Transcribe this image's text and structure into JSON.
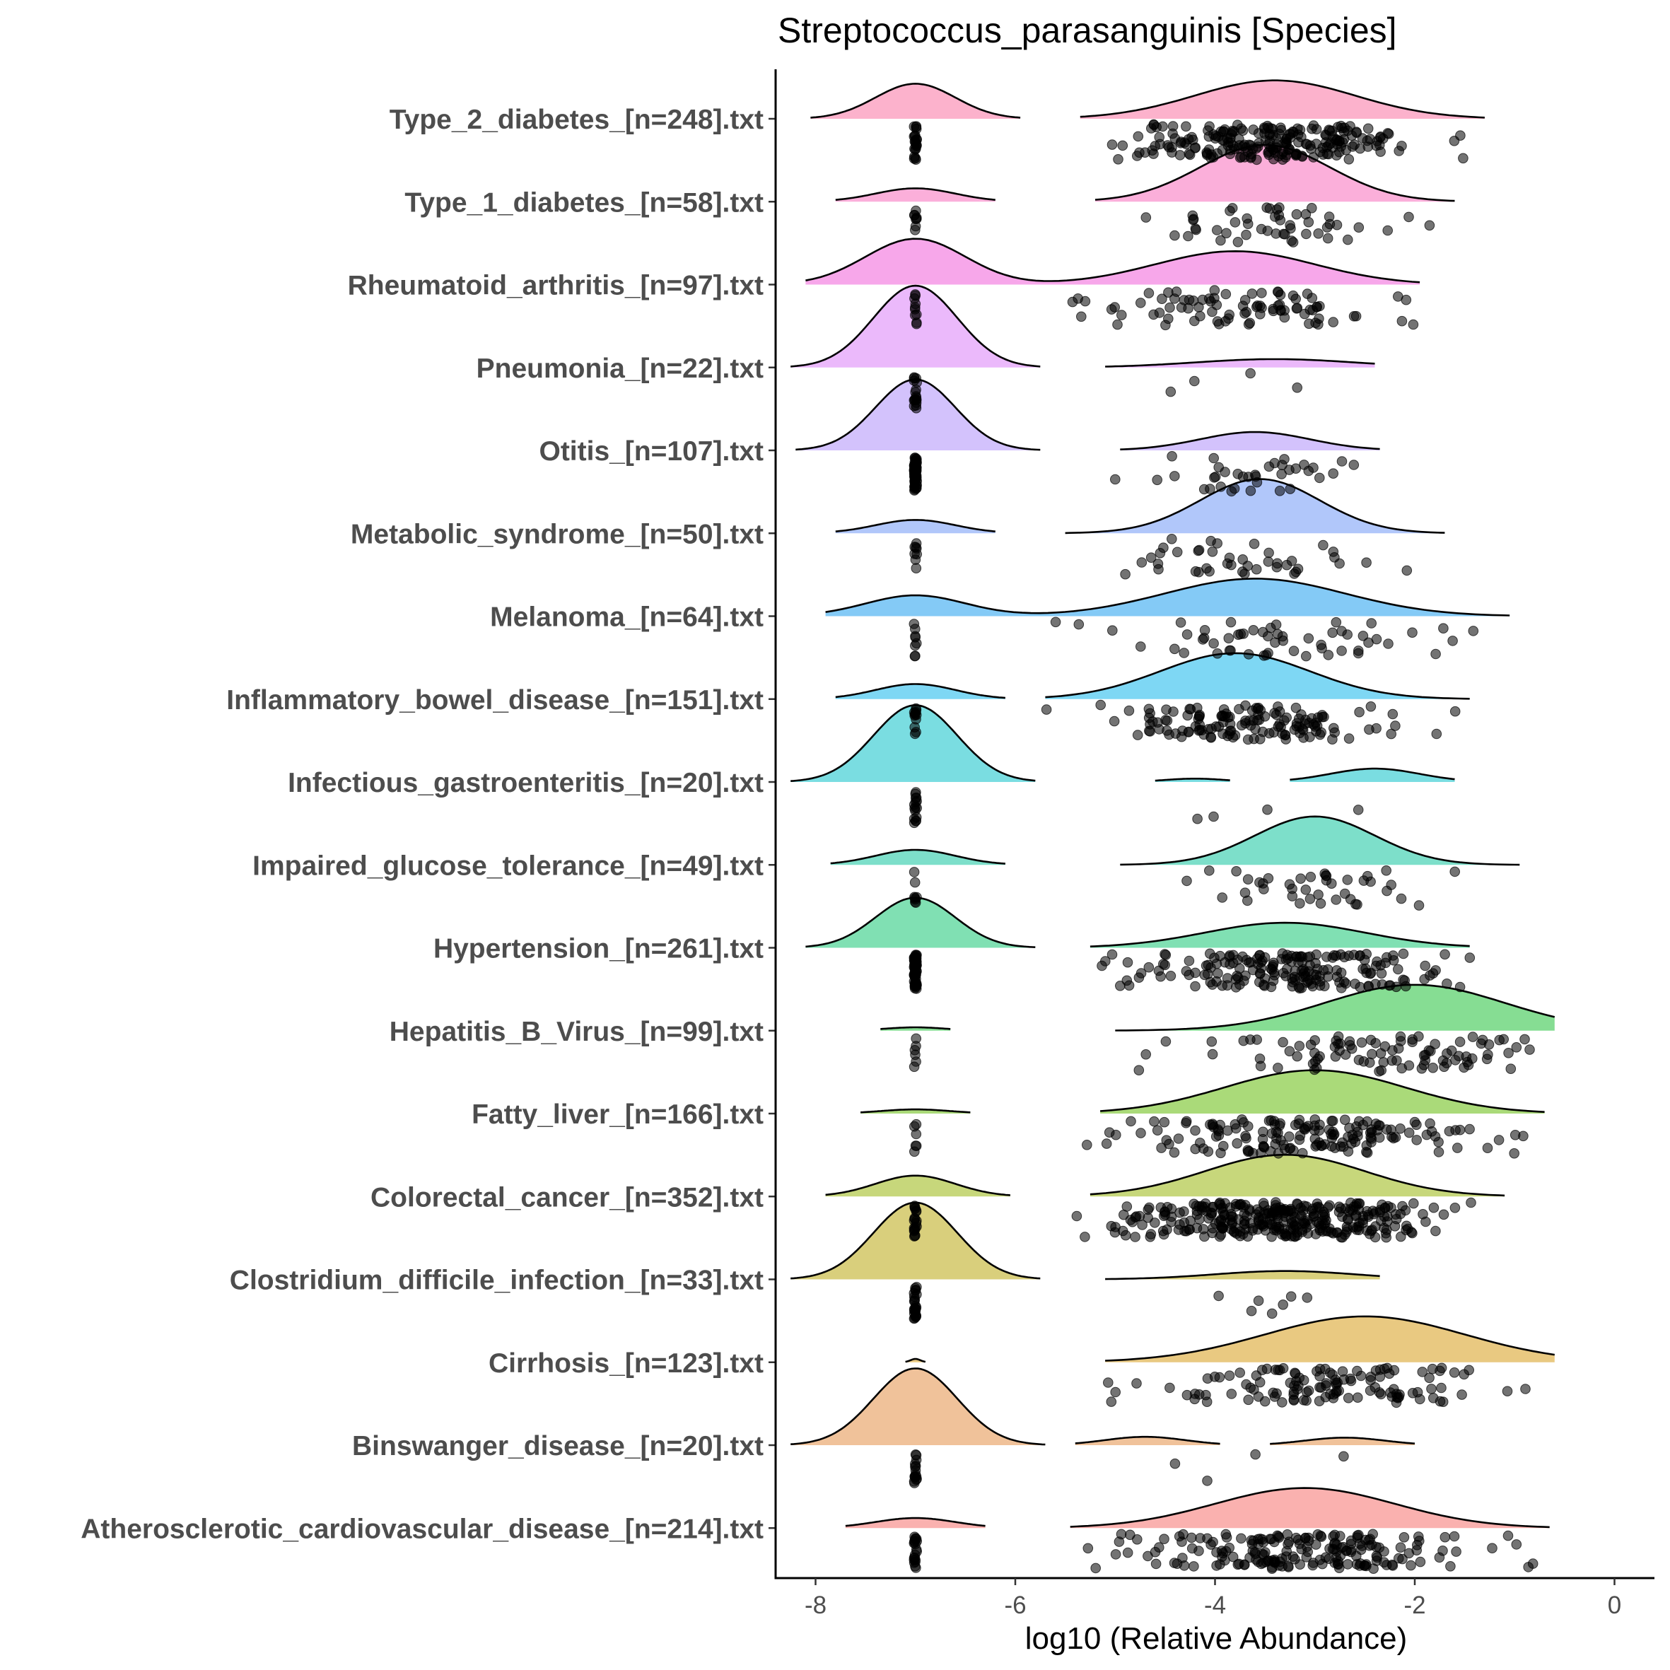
{
  "chart_data": {
    "type": "raincloud",
    "title": "Streptococcus_parasanguinis [Species]",
    "xlabel": "log10 (Relative Abundance)",
    "ylabel": "",
    "xlim": [
      -8.4,
      0.4
    ],
    "xticks": [
      -8,
      -6,
      -4,
      -2,
      0
    ],
    "xtick_labels": [
      "-8",
      "-6",
      "-4",
      "-2",
      "0"
    ],
    "zero_value": -7,
    "series": [
      {
        "name": "Type_2_diabetes_[n=248].txt",
        "color": "#FCB2CC",
        "clouds": [
          {
            "range": [
              -8.05,
              -5.95
            ],
            "mode": -7.0,
            "sd": 0.4,
            "height": 0.42
          },
          {
            "range": [
              -5.35,
              -1.3
            ],
            "mode": -3.4,
            "sd": 0.8,
            "height": 0.46
          }
        ],
        "zero_points": 22,
        "nonzero_range": [
          -5.4,
          -1.5
        ],
        "nonzero_center": -3.4,
        "nonzero_sd": 0.75,
        "nonzero_points": 226
      },
      {
        "name": "Type_1_diabetes_[n=58].txt",
        "color": "#FBAFDA",
        "clouds": [
          {
            "range": [
              -7.8,
              -6.2
            ],
            "mode": -7.0,
            "sd": 0.4,
            "height": 0.16
          },
          {
            "range": [
              -5.2,
              -1.6
            ],
            "mode": -3.5,
            "sd": 0.65,
            "height": 0.68
          }
        ],
        "zero_points": 8,
        "nonzero_range": [
          -5.0,
          -1.8
        ],
        "nonzero_center": -3.3,
        "nonzero_sd": 0.6,
        "nonzero_points": 50
      },
      {
        "name": "Rheumatoid_arthritis_[n=97].txt",
        "color": "#F7A7EA",
        "clouds": [
          {
            "range": [
              -8.1,
              -1.95
            ],
            "mode": -7.0,
            "sd": 0.5,
            "height": 0.55,
            "second": {
              "mode": -3.8,
              "sd": 0.8,
              "height": 0.4
            }
          }
        ],
        "zero_points": 10,
        "nonzero_range": [
          -5.5,
          -2.0
        ],
        "nonzero_center": -3.8,
        "nonzero_sd": 0.7,
        "nonzero_points": 87
      },
      {
        "name": "Pneumonia_[n=22].txt",
        "color": "#EBB9FB",
        "clouds": [
          {
            "range": [
              -8.25,
              -5.75
            ],
            "mode": -7.0,
            "sd": 0.42,
            "height": 0.98
          },
          {
            "range": [
              -5.1,
              -2.4
            ],
            "mode": -3.4,
            "sd": 0.8,
            "height": 0.1
          }
        ],
        "zero_points": 18,
        "nonzero_range": [
          -4.8,
          -2.9
        ],
        "nonzero_center": -3.6,
        "nonzero_sd": 0.6,
        "nonzero_points": 4
      },
      {
        "name": "Otitis_[n=107].txt",
        "color": "#D3C2FC",
        "clouds": [
          {
            "range": [
              -8.2,
              -5.75
            ],
            "mode": -7.0,
            "sd": 0.4,
            "height": 0.85
          },
          {
            "range": [
              -4.95,
              -2.35
            ],
            "mode": -3.6,
            "sd": 0.55,
            "height": 0.22
          }
        ],
        "zero_points": 70,
        "nonzero_range": [
          -5.2,
          -2.6
        ],
        "nonzero_center": -3.6,
        "nonzero_sd": 0.45,
        "nonzero_points": 37
      },
      {
        "name": "Metabolic_syndrome_[n=50].txt",
        "color": "#B1C7FA",
        "clouds": [
          {
            "range": [
              -7.8,
              -6.2
            ],
            "mode": -7.0,
            "sd": 0.4,
            "height": 0.16
          },
          {
            "range": [
              -5.5,
              -1.7
            ],
            "mode": -3.55,
            "sd": 0.6,
            "height": 0.65
          }
        ],
        "zero_points": 8,
        "nonzero_range": [
          -5.0,
          -2.0
        ],
        "nonzero_center": -3.6,
        "nonzero_sd": 0.6,
        "nonzero_points": 42
      },
      {
        "name": "Melanoma_[n=64].txt",
        "color": "#84CAF6",
        "clouds": [
          {
            "range": [
              -7.9,
              -1.05
            ],
            "mode": -7.0,
            "sd": 0.5,
            "height": 0.25,
            "second": {
              "mode": -3.6,
              "sd": 0.9,
              "height": 0.45
            }
          }
        ],
        "zero_points": 8,
        "nonzero_range": [
          -5.8,
          -1.4
        ],
        "nonzero_center": -3.5,
        "nonzero_sd": 0.9,
        "nonzero_points": 56
      },
      {
        "name": "Inflammatory_bowel_disease_[n=151].txt",
        "color": "#7ED7F4",
        "clouds": [
          {
            "range": [
              -7.8,
              -6.1
            ],
            "mode": -7.0,
            "sd": 0.4,
            "height": 0.18
          },
          {
            "range": [
              -5.7,
              -1.45
            ],
            "mode": -3.8,
            "sd": 0.75,
            "height": 0.55
          }
        ],
        "zero_points": 12,
        "nonzero_range": [
          -5.8,
          -1.5
        ],
        "nonzero_center": -3.7,
        "nonzero_sd": 0.7,
        "nonzero_points": 139
      },
      {
        "name": "Infectious_gastroenteritis_[n=20].txt",
        "color": "#7ADDE1",
        "clouds": [
          {
            "range": [
              -8.25,
              -5.8
            ],
            "mode": -7.0,
            "sd": 0.42,
            "height": 0.92
          },
          {
            "range": [
              -4.6,
              -3.85
            ],
            "mode": -4.2,
            "sd": 0.3,
            "height": 0.04
          },
          {
            "range": [
              -3.25,
              -1.6
            ],
            "mode": -2.4,
            "sd": 0.45,
            "height": 0.16
          }
        ],
        "zero_points": 16,
        "nonzero_range": [
          -4.3,
          -2.3
        ],
        "nonzero_center": -3.0,
        "nonzero_sd": 0.8,
        "nonzero_points": 4
      },
      {
        "name": "Impaired_glucose_tolerance_[n=49].txt",
        "color": "#7DDFCA",
        "clouds": [
          {
            "range": [
              -7.85,
              -6.1
            ],
            "mode": -7.0,
            "sd": 0.4,
            "height": 0.18
          },
          {
            "range": [
              -4.95,
              -0.95
            ],
            "mode": -3.0,
            "sd": 0.6,
            "height": 0.58
          }
        ],
        "zero_points": 8,
        "nonzero_range": [
          -5.3,
          -1.0
        ],
        "nonzero_center": -3.0,
        "nonzero_sd": 0.7,
        "nonzero_points": 41
      },
      {
        "name": "Hypertension_[n=261].txt",
        "color": "#80E0B3",
        "clouds": [
          {
            "range": [
              -8.1,
              -5.8
            ],
            "mode": -7.0,
            "sd": 0.4,
            "height": 0.6
          },
          {
            "range": [
              -5.25,
              -1.45
            ],
            "mode": -3.3,
            "sd": 0.8,
            "height": 0.3
          }
        ],
        "zero_points": 70,
        "nonzero_range": [
          -5.3,
          -1.3
        ],
        "nonzero_center": -3.3,
        "nonzero_sd": 0.75,
        "nonzero_points": 191
      },
      {
        "name": "Hepatitis_B_Virus_[n=99].txt",
        "color": "#86DD93",
        "clouds": [
          {
            "range": [
              -7.35,
              -6.65
            ],
            "mode": -7.0,
            "sd": 0.3,
            "height": 0.04
          },
          {
            "range": [
              -5.0,
              -0.6
            ],
            "mode": -2.0,
            "sd": 0.9,
            "height": 0.55
          }
        ],
        "zero_points": 6,
        "nonzero_range": [
          -4.9,
          -0.8
        ],
        "nonzero_center": -2.4,
        "nonzero_sd": 0.9,
        "nonzero_points": 93
      },
      {
        "name": "Fatty_liver_[n=166].txt",
        "color": "#AADA79",
        "clouds": [
          {
            "range": [
              -7.55,
              -6.45
            ],
            "mode": -7.0,
            "sd": 0.35,
            "height": 0.05
          },
          {
            "range": [
              -5.15,
              -0.7
            ],
            "mode": -3.0,
            "sd": 0.9,
            "height": 0.52
          }
        ],
        "zero_points": 6,
        "nonzero_range": [
          -5.3,
          -0.9
        ],
        "nonzero_center": -3.0,
        "nonzero_sd": 0.9,
        "nonzero_points": 160
      },
      {
        "name": "Colorectal_cancer_[n=352].txt",
        "color": "#C7D77B",
        "clouds": [
          {
            "range": [
              -7.9,
              -6.05
            ],
            "mode": -7.0,
            "sd": 0.4,
            "height": 0.25
          },
          {
            "range": [
              -5.25,
              -1.1
            ],
            "mode": -3.3,
            "sd": 0.8,
            "height": 0.5
          }
        ],
        "zero_points": 20,
        "nonzero_range": [
          -5.7,
          -1.0
        ],
        "nonzero_center": -3.3,
        "nonzero_sd": 0.75,
        "nonzero_points": 332
      },
      {
        "name": "Clostridium_difficile_infection_[n=33].txt",
        "color": "#D9CF7C",
        "clouds": [
          {
            "range": [
              -8.25,
              -5.75
            ],
            "mode": -7.0,
            "sd": 0.42,
            "height": 0.92
          },
          {
            "range": [
              -5.1,
              -2.35
            ],
            "mode": -3.3,
            "sd": 0.7,
            "height": 0.1
          }
        ],
        "zero_points": 26,
        "nonzero_range": [
          -4.8,
          -2.9
        ],
        "nonzero_center": -3.5,
        "nonzero_sd": 0.6,
        "nonzero_points": 7
      },
      {
        "name": "Cirrhosis_[n=123].txt",
        "color": "#E9C981",
        "clouds": [
          {
            "range": [
              -7.1,
              -6.9
            ],
            "mode": -7.0,
            "sd": 0.05,
            "height": 0.04
          },
          {
            "range": [
              -5.1,
              -0.6
            ],
            "mode": -2.5,
            "sd": 1.0,
            "height": 0.55
          }
        ],
        "zero_points": 0,
        "nonzero_range": [
          -5.2,
          -0.8
        ],
        "nonzero_center": -2.8,
        "nonzero_sd": 0.9,
        "nonzero_points": 123
      },
      {
        "name": "Binswanger_disease_[n=20].txt",
        "color": "#F0C29A",
        "clouds": [
          {
            "range": [
              -8.25,
              -5.7
            ],
            "mode": -7.0,
            "sd": 0.42,
            "height": 0.92
          },
          {
            "range": [
              -5.4,
              -3.95
            ],
            "mode": -4.7,
            "sd": 0.4,
            "height": 0.1
          },
          {
            "range": [
              -3.45,
              -2.0
            ],
            "mode": -2.7,
            "sd": 0.4,
            "height": 0.09
          }
        ],
        "zero_points": 16,
        "nonzero_range": [
          -4.8,
          -2.7
        ],
        "nonzero_center": -3.6,
        "nonzero_sd": 1.0,
        "nonzero_points": 4
      },
      {
        "name": "Atherosclerotic_cardiovascular_disease_[n=214].txt",
        "color": "#FAB1AF",
        "clouds": [
          {
            "range": [
              -7.7,
              -6.3
            ],
            "mode": -7.0,
            "sd": 0.4,
            "height": 0.12
          },
          {
            "range": [
              -5.45,
              -0.65
            ],
            "mode": -3.1,
            "sd": 0.9,
            "height": 0.48
          }
        ],
        "zero_points": 20,
        "nonzero_range": [
          -5.3,
          -0.7
        ],
        "nonzero_center": -3.1,
        "nonzero_sd": 0.85,
        "nonzero_points": 194
      }
    ]
  }
}
